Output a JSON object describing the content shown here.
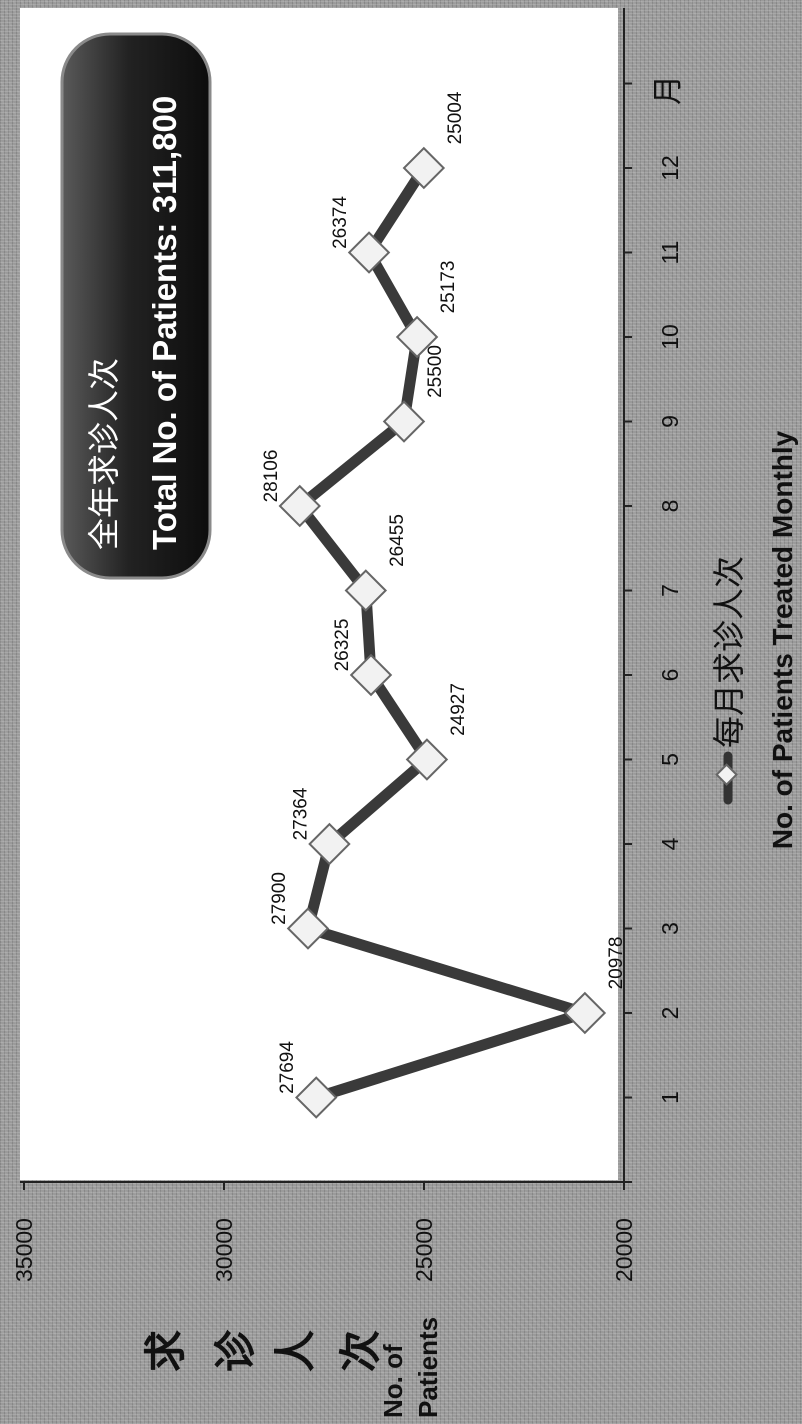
{
  "chart_data": {
    "type": "line",
    "orientation": "rotated-90-clockwise",
    "x": [
      1,
      2,
      3,
      4,
      5,
      6,
      7,
      8,
      9,
      10,
      11,
      12
    ],
    "x_tick_labels": [
      "1",
      "2",
      "3",
      "4",
      "5",
      "6",
      "7",
      "8",
      "9",
      "10",
      "11",
      "12"
    ],
    "x_unit_label": "月",
    "series": [
      {
        "name": "每月求诊人次",
        "values": [
          27694,
          20978,
          27900,
          27364,
          24927,
          26325,
          26455,
          28106,
          25500,
          25173,
          26374,
          25004
        ],
        "data_labels": [
          "27694",
          "20978",
          "27900",
          "27364",
          "24927",
          "26325",
          "26455",
          "28106",
          "25500",
          "25173",
          "26374",
          "25004"
        ]
      }
    ],
    "y_ticks": [
      "20000",
      "25000",
      "30000",
      "35000"
    ],
    "ylim": [
      20000,
      35000
    ],
    "ylabel_cn": [
      "求",
      "诊",
      "人",
      "次"
    ],
    "ylabel_en": [
      "No. of",
      "Patients"
    ],
    "xlabel_en": "No. of Patients Treated  Monthly",
    "legend": {
      "label": "每月求诊人次",
      "placement": "bottom"
    },
    "annotation": {
      "line1": "全年求诊人次",
      "line2": "Total No. of Patients:  311,800"
    },
    "grid": false,
    "colors": {
      "line": "#3a3a3a",
      "marker_fill": "#f2f2f2",
      "marker_stroke": "#666666",
      "plot_background": "#ffffff",
      "annotation_box": "#1e1e1e",
      "annotation_text": "#ffffff"
    }
  }
}
